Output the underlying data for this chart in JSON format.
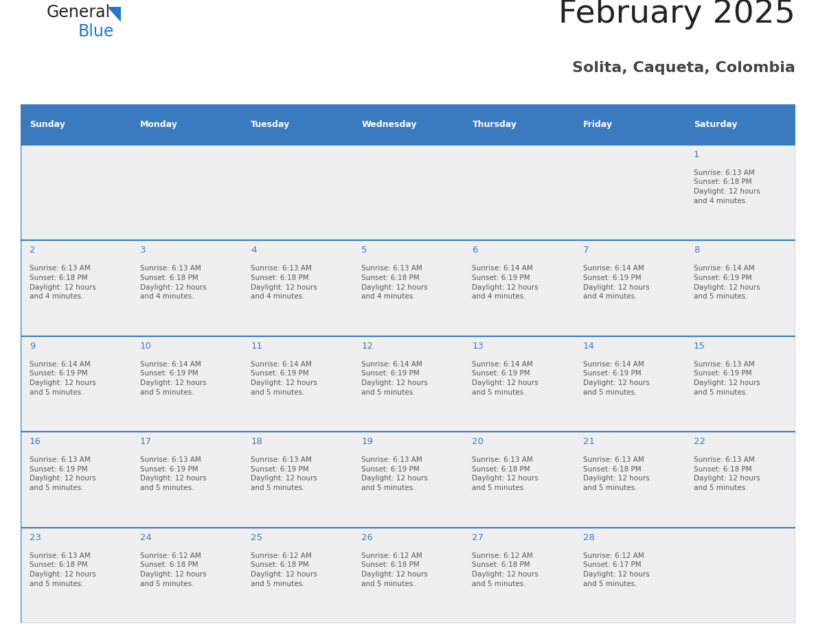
{
  "title": "February 2025",
  "subtitle": "Solita, Caqueta, Colombia",
  "days_of_week": [
    "Sunday",
    "Monday",
    "Tuesday",
    "Wednesday",
    "Thursday",
    "Friday",
    "Saturday"
  ],
  "header_bg": "#3a7abf",
  "header_text": "#ffffff",
  "row_bg": "#efefef",
  "cell_border": "#3a7abf",
  "day_number_color": "#3a7abf",
  "info_text_color": "#555555",
  "title_color": "#222222",
  "subtitle_color": "#444444",
  "logo_general_color": "#222222",
  "logo_blue_color": "#2277cc",
  "calendar_data": [
    [
      null,
      null,
      null,
      null,
      null,
      null,
      {
        "day": 1,
        "sunrise": "6:13 AM",
        "sunset": "6:18 PM",
        "daylight": "12 hours\nand 4 minutes."
      }
    ],
    [
      {
        "day": 2,
        "sunrise": "6:13 AM",
        "sunset": "6:18 PM",
        "daylight": "12 hours\nand 4 minutes."
      },
      {
        "day": 3,
        "sunrise": "6:13 AM",
        "sunset": "6:18 PM",
        "daylight": "12 hours\nand 4 minutes."
      },
      {
        "day": 4,
        "sunrise": "6:13 AM",
        "sunset": "6:18 PM",
        "daylight": "12 hours\nand 4 minutes."
      },
      {
        "day": 5,
        "sunrise": "6:13 AM",
        "sunset": "6:18 PM",
        "daylight": "12 hours\nand 4 minutes."
      },
      {
        "day": 6,
        "sunrise": "6:14 AM",
        "sunset": "6:19 PM",
        "daylight": "12 hours\nand 4 minutes."
      },
      {
        "day": 7,
        "sunrise": "6:14 AM",
        "sunset": "6:19 PM",
        "daylight": "12 hours\nand 4 minutes."
      },
      {
        "day": 8,
        "sunrise": "6:14 AM",
        "sunset": "6:19 PM",
        "daylight": "12 hours\nand 5 minutes."
      }
    ],
    [
      {
        "day": 9,
        "sunrise": "6:14 AM",
        "sunset": "6:19 PM",
        "daylight": "12 hours\nand 5 minutes."
      },
      {
        "day": 10,
        "sunrise": "6:14 AM",
        "sunset": "6:19 PM",
        "daylight": "12 hours\nand 5 minutes."
      },
      {
        "day": 11,
        "sunrise": "6:14 AM",
        "sunset": "6:19 PM",
        "daylight": "12 hours\nand 5 minutes."
      },
      {
        "day": 12,
        "sunrise": "6:14 AM",
        "sunset": "6:19 PM",
        "daylight": "12 hours\nand 5 minutes."
      },
      {
        "day": 13,
        "sunrise": "6:14 AM",
        "sunset": "6:19 PM",
        "daylight": "12 hours\nand 5 minutes."
      },
      {
        "day": 14,
        "sunrise": "6:14 AM",
        "sunset": "6:19 PM",
        "daylight": "12 hours\nand 5 minutes."
      },
      {
        "day": 15,
        "sunrise": "6:13 AM",
        "sunset": "6:19 PM",
        "daylight": "12 hours\nand 5 minutes."
      }
    ],
    [
      {
        "day": 16,
        "sunrise": "6:13 AM",
        "sunset": "6:19 PM",
        "daylight": "12 hours\nand 5 minutes."
      },
      {
        "day": 17,
        "sunrise": "6:13 AM",
        "sunset": "6:19 PM",
        "daylight": "12 hours\nand 5 minutes."
      },
      {
        "day": 18,
        "sunrise": "6:13 AM",
        "sunset": "6:19 PM",
        "daylight": "12 hours\nand 5 minutes."
      },
      {
        "day": 19,
        "sunrise": "6:13 AM",
        "sunset": "6:19 PM",
        "daylight": "12 hours\nand 5 minutes."
      },
      {
        "day": 20,
        "sunrise": "6:13 AM",
        "sunset": "6:18 PM",
        "daylight": "12 hours\nand 5 minutes."
      },
      {
        "day": 21,
        "sunrise": "6:13 AM",
        "sunset": "6:18 PM",
        "daylight": "12 hours\nand 5 minutes."
      },
      {
        "day": 22,
        "sunrise": "6:13 AM",
        "sunset": "6:18 PM",
        "daylight": "12 hours\nand 5 minutes."
      }
    ],
    [
      {
        "day": 23,
        "sunrise": "6:13 AM",
        "sunset": "6:18 PM",
        "daylight": "12 hours\nand 5 minutes."
      },
      {
        "day": 24,
        "sunrise": "6:12 AM",
        "sunset": "6:18 PM",
        "daylight": "12 hours\nand 5 minutes."
      },
      {
        "day": 25,
        "sunrise": "6:12 AM",
        "sunset": "6:18 PM",
        "daylight": "12 hours\nand 5 minutes."
      },
      {
        "day": 26,
        "sunrise": "6:12 AM",
        "sunset": "6:18 PM",
        "daylight": "12 hours\nand 5 minutes."
      },
      {
        "day": 27,
        "sunrise": "6:12 AM",
        "sunset": "6:18 PM",
        "daylight": "12 hours\nand 5 minutes."
      },
      {
        "day": 28,
        "sunrise": "6:12 AM",
        "sunset": "6:17 PM",
        "daylight": "12 hours\nand 5 minutes."
      },
      null
    ]
  ]
}
